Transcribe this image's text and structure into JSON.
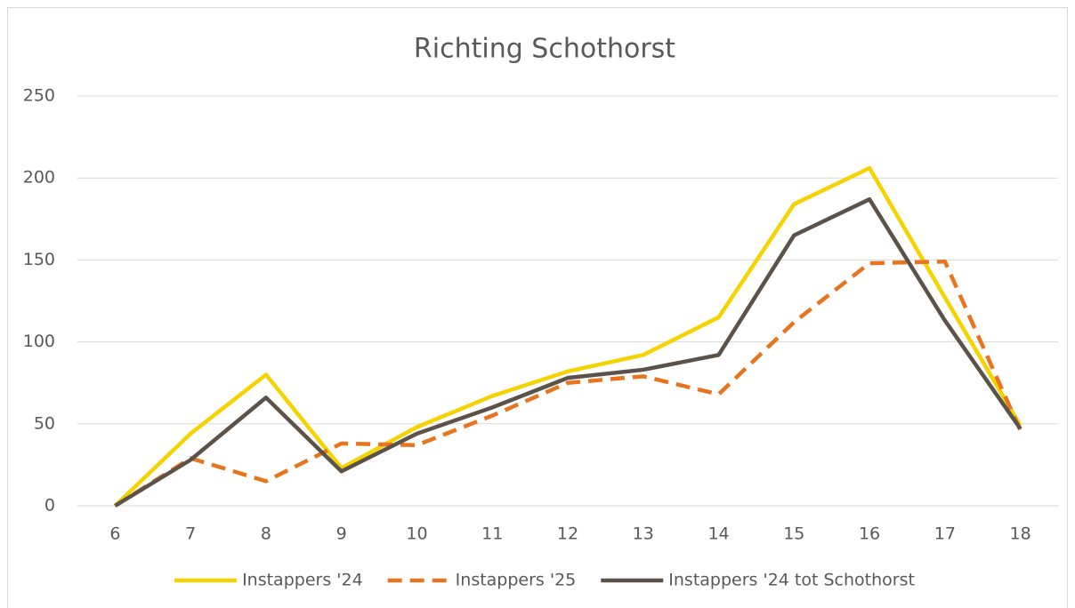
{
  "chart_data": {
    "type": "line",
    "title": "Richting Schothorst",
    "categories": [
      "6",
      "7",
      "8",
      "9",
      "10",
      "11",
      "12",
      "13",
      "14",
      "15",
      "16",
      "17",
      "18"
    ],
    "series": [
      {
        "name": "Instappers '24",
        "color": "#f5d300",
        "dash": false,
        "values": [
          0,
          44,
          80,
          23,
          48,
          67,
          82,
          92,
          115,
          184,
          206,
          127,
          49
        ]
      },
      {
        "name": "Instappers '25",
        "color": "#e8741e",
        "dash": true,
        "values": [
          0,
          29,
          15,
          38,
          37,
          55,
          75,
          79,
          68,
          112,
          148,
          149,
          46
        ]
      },
      {
        "name": "Instappers '24 tot Schothorst",
        "color": "#5b524a",
        "dash": false,
        "values": [
          0,
          28,
          66,
          21,
          44,
          60,
          78,
          83,
          92,
          165,
          187,
          113,
          47
        ]
      }
    ],
    "ylim": [
      0,
      250
    ],
    "yticks": [
      0,
      50,
      100,
      150,
      200,
      250
    ],
    "grid": true,
    "legend": "bottom"
  }
}
